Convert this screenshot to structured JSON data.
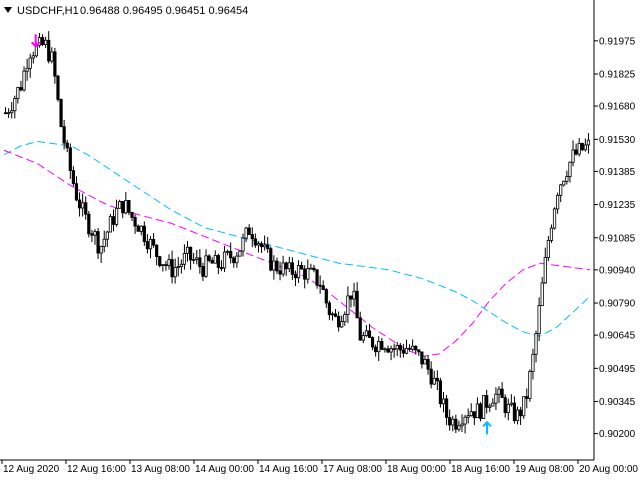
{
  "header": {
    "symbol_timeframe": "USDCHF,H1",
    "ohlc": "0.96488 0.96495 0.96451 0.96454",
    "icon": "triangle-down-icon"
  },
  "chart_data": {
    "type": "candlestick",
    "symbol": "USDCHF",
    "timeframe": "H1",
    "ylim": [
      0.90135,
      0.9206
    ],
    "grid": false,
    "y_ticks": [
      "0.91975",
      "0.91825",
      "0.91680",
      "0.91530",
      "0.91385",
      "0.91235",
      "0.91085",
      "0.90940",
      "0.90790",
      "0.90645",
      "0.90495",
      "0.90345",
      "0.90200"
    ],
    "x_ticks": [
      "12 Aug 2020",
      "12 Aug 16:00",
      "13 Aug 08:00",
      "14 Aug 00:00",
      "14 Aug 16:00",
      "17 Aug 08:00",
      "18 Aug 00:00",
      "18 Aug 16:00",
      "19 Aug 08:00",
      "20 Aug 00:00"
    ],
    "close_path": [
      0.9165,
      0.9171,
      0.9178,
      0.9193,
      0.9194,
      0.9196,
      0.9188,
      0.916,
      0.9142,
      0.9128,
      0.9118,
      0.9112,
      0.9104,
      0.9112,
      0.912,
      0.9124,
      0.9118,
      0.9114,
      0.9108,
      0.9102,
      0.9098,
      0.9094,
      0.9096,
      0.91,
      0.9098,
      0.9095,
      0.9097,
      0.9096,
      0.9099,
      0.9101,
      0.9105,
      0.9113,
      0.9108,
      0.9101,
      0.9096,
      0.9095,
      0.9093,
      0.9094,
      0.9093,
      0.9091,
      0.9088,
      0.9076,
      0.9071,
      0.9077,
      0.9085,
      0.9064,
      0.9062,
      0.9061,
      0.9062,
      0.9059,
      0.9058,
      0.9059,
      0.9056,
      0.9053,
      0.9047,
      0.9038,
      0.9028,
      0.9025,
      0.9029,
      0.9031,
      0.903,
      0.9034,
      0.9038,
      0.9035,
      0.903,
      0.9028,
      0.9034,
      0.9055,
      0.9083,
      0.911,
      0.913,
      0.9138,
      0.9145,
      0.9148,
      0.915
    ],
    "signals": [
      {
        "type": "sell",
        "arrow_color": "#ff00ff",
        "at_index": 4,
        "price": 0.9195
      },
      {
        "type": "buy",
        "arrow_color": "#00bfff",
        "at_index": 61,
        "price": 0.9026
      }
    ],
    "series": [
      {
        "kind": "dashed-line",
        "color": "#00bfff",
        "values": [
          0.9146,
          0.915,
          0.9152,
          0.9151,
          0.915,
          0.9146,
          0.9141,
          0.9136,
          0.9131,
          0.9126,
          0.9121,
          0.9117,
          0.9113,
          0.9111,
          0.9109,
          0.9107,
          0.9105,
          0.9103,
          0.9101,
          0.9099,
          0.9097,
          0.9096,
          0.9095,
          0.9094,
          0.9092,
          0.909,
          0.9087,
          0.9084,
          0.908,
          0.9075,
          0.907,
          0.9066,
          0.9064,
          0.9068,
          0.9075,
          0.9082
        ]
      },
      {
        "kind": "dashed-line",
        "color": "#ff00ff",
        "values": [
          0.9148,
          0.9145,
          0.9142,
          0.9137,
          0.9132,
          0.9128,
          0.9124,
          0.9121,
          0.9119,
          0.9117,
          0.9115,
          0.9112,
          0.9109,
          0.9106,
          0.9103,
          0.91,
          0.9097,
          0.9094,
          0.9091,
          0.9086,
          0.908,
          0.9074,
          0.9068,
          0.9063,
          0.9058,
          0.9055,
          0.9056,
          0.9062,
          0.907,
          0.908,
          0.9088,
          0.9094,
          0.9097,
          0.9096,
          0.9095,
          0.9094
        ]
      }
    ]
  },
  "colors": {
    "candle": "#000000",
    "background": "#ffffff",
    "axis": "#000000"
  }
}
